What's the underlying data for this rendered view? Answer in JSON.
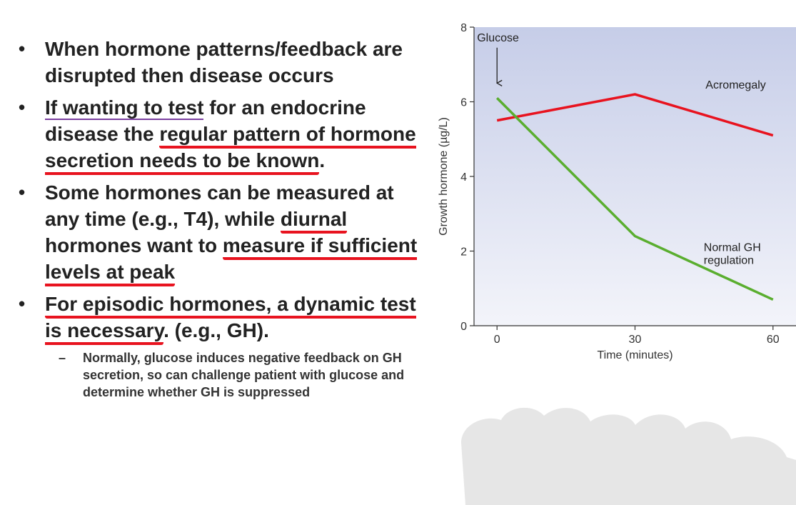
{
  "bullets": [
    {
      "segments": [
        {
          "text": "When hormone patterns/feedback are disrupted then disease occurs",
          "underline": "none"
        }
      ]
    },
    {
      "segments": [
        {
          "text": "If wanting to test",
          "underline": "purple"
        },
        {
          "text": " for an endocrine disease the ",
          "underline": "none"
        },
        {
          "text": "regular pattern of hormone secretion needs to be known",
          "underline": "red"
        },
        {
          "text": ".",
          "underline": "none"
        }
      ]
    },
    {
      "segments": [
        {
          "text": "Some hormones can be measured at any time (e.g., T4), while ",
          "underline": "none"
        },
        {
          "text": "diurnal",
          "underline": "red"
        },
        {
          "text": " hormones want to ",
          "underline": "none"
        },
        {
          "text": "measure if sufficient levels at peak",
          "underline": "red"
        }
      ]
    },
    {
      "segments": [
        {
          "text": "For episodic hormones, a dynamic test is necessary",
          "underline": "red"
        },
        {
          "text": ". (e.g., GH).",
          "underline": "none"
        }
      ]
    }
  ],
  "sub_bullet": "Normally, glucose induces negative feedback on GH secretion, so can challenge patient with glucose and determine whether GH is suppressed",
  "chart_data": {
    "type": "line",
    "x": [
      0,
      30,
      60
    ],
    "xlim": [
      -5,
      65
    ],
    "ylim": [
      0,
      8
    ],
    "xticks": [
      0,
      30,
      60
    ],
    "yticks": [
      0,
      2,
      4,
      6,
      8
    ],
    "xlabel": "Time (minutes)",
    "ylabel": "Growth hormone (µg/L)",
    "series": [
      {
        "name": "Acromegaly",
        "values": [
          5.5,
          6.2,
          5.1
        ],
        "color": "#e8131f"
      },
      {
        "name": "Normal GH regulation",
        "label_lines": [
          "Normal GH",
          "regulation"
        ],
        "values": [
          6.1,
          2.4,
          0.7
        ],
        "color": "#5aae2f"
      }
    ],
    "annotation": {
      "text": "Glucose",
      "x": 0
    },
    "plot_background": "#d3d9ee",
    "grid": false
  },
  "colors": {
    "underline_red": "#e8131f",
    "underline_purple": "#7b3fa0",
    "cloud": "#e6e6e6"
  }
}
